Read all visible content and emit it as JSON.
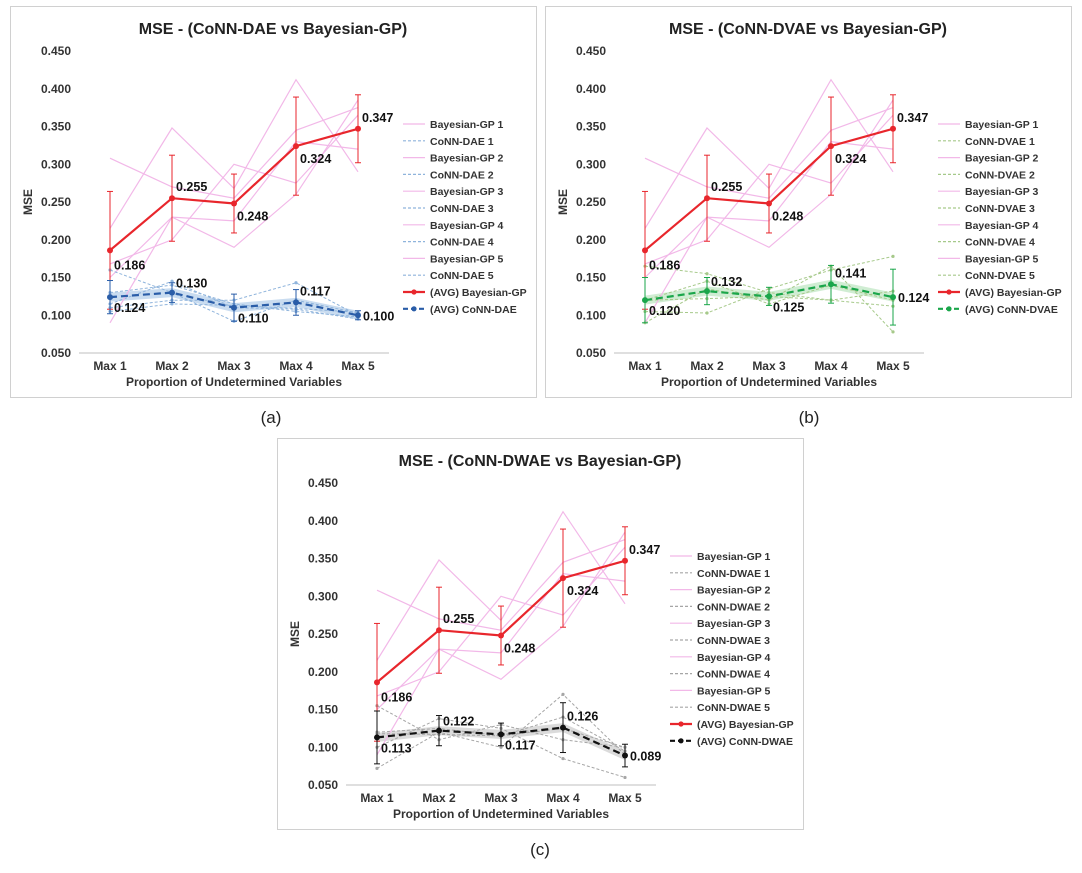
{
  "subcaptions": [
    "(a)",
    "(b)",
    "(c)"
  ],
  "chart_data": [
    {
      "type": "line",
      "title": "MSE - (CoNN-DAE vs Bayesian-GP)",
      "xlabel": "Proportion of Undetermined Variables",
      "ylabel": "MSE",
      "categories": [
        "Max 1",
        "Max 2",
        "Max 3",
        "Max 4",
        "Max 5"
      ],
      "ylim": [
        0.05,
        0.45
      ],
      "yticks": [
        "0.050",
        "0.100",
        "0.150",
        "0.200",
        "0.250",
        "0.300",
        "0.350",
        "0.400",
        "0.450"
      ],
      "legend_position": "right",
      "colors": {
        "bg_runs": "#f2b8e8",
        "nn_runs": "#8fb4dc",
        "bg_avg": "#e8262c",
        "nn_avg": "#2a5da8",
        "nn_band": "#bcd3ec"
      },
      "series": [
        {
          "name": "Bayesian-GP 1",
          "group": "bg",
          "values": [
            0.308,
            0.27,
            0.255,
            0.345,
            0.375
          ]
        },
        {
          "name": "CoNN-DAE 1",
          "group": "nn",
          "values": [
            0.13,
            0.14,
            0.115,
            0.105,
            0.098
          ]
        },
        {
          "name": "Bayesian-GP 2",
          "group": "bg",
          "values": [
            0.215,
            0.348,
            0.268,
            0.412,
            0.29
          ]
        },
        {
          "name": "CoNN-DAE 2",
          "group": "nn",
          "values": [
            0.11,
            0.12,
            0.12,
            0.143,
            0.1
          ]
        },
        {
          "name": "Bayesian-GP 3",
          "group": "bg",
          "values": [
            0.15,
            0.23,
            0.19,
            0.26,
            0.385
          ]
        },
        {
          "name": "CoNN-DAE 3",
          "group": "nn",
          "values": [
            0.16,
            0.13,
            0.092,
            0.12,
            0.103
          ]
        },
        {
          "name": "Bayesian-GP 4",
          "group": "bg",
          "values": [
            0.168,
            0.2,
            0.3,
            0.275,
            0.365
          ]
        },
        {
          "name": "CoNN-DAE 4",
          "group": "nn",
          "values": [
            0.115,
            0.145,
            0.11,
            0.108,
            0.095
          ]
        },
        {
          "name": "Bayesian-GP 5",
          "group": "bg",
          "values": [
            0.09,
            0.23,
            0.225,
            0.33,
            0.32
          ]
        },
        {
          "name": "CoNN-DAE 5",
          "group": "nn",
          "values": [
            0.105,
            0.115,
            0.113,
            0.109,
            0.104
          ]
        },
        {
          "name": "(AVG) Bayesian-GP",
          "group": "bg_avg",
          "values": [
            0.186,
            0.255,
            0.248,
            0.324,
            0.347
          ],
          "errors": [
            0.078,
            0.057,
            0.039,
            0.065,
            0.045
          ]
        },
        {
          "name": "(AVG) CoNN-DAE",
          "group": "nn_avg",
          "values": [
            0.124,
            0.13,
            0.11,
            0.117,
            0.1
          ],
          "errors": [
            0.022,
            0.013,
            0.018,
            0.017,
            0.006
          ]
        }
      ],
      "data_labels": {
        "bg": [
          "0.186",
          "0.255",
          "0.248",
          "0.324",
          "0.347"
        ],
        "nn": [
          "0.124",
          "0.130",
          "0.110",
          "0.117",
          "0.100"
        ]
      }
    },
    {
      "type": "line",
      "title": "MSE - (CoNN-DVAE vs Bayesian-GP)",
      "xlabel": "Proportion of Undetermined Variables",
      "ylabel": "MSE",
      "categories": [
        "Max 1",
        "Max 2",
        "Max 3",
        "Max 4",
        "Max 5"
      ],
      "ylim": [
        0.05,
        0.45
      ],
      "yticks": [
        "0.050",
        "0.100",
        "0.150",
        "0.200",
        "0.250",
        "0.300",
        "0.350",
        "0.400",
        "0.450"
      ],
      "legend_position": "right",
      "colors": {
        "bg_runs": "#f2b8e8",
        "nn_runs": "#a6c98a",
        "bg_avg": "#e8262c",
        "nn_avg": "#1aa64a",
        "nn_band": "#c4e8c8"
      },
      "series": [
        {
          "name": "Bayesian-GP 1",
          "group": "bg",
          "values": [
            0.308,
            0.27,
            0.255,
            0.345,
            0.375
          ]
        },
        {
          "name": "CoNN-DVAE 1",
          "group": "nn",
          "values": [
            0.09,
            0.135,
            0.12,
            0.165,
            0.078
          ]
        },
        {
          "name": "Bayesian-GP 2",
          "group": "bg",
          "values": [
            0.215,
            0.348,
            0.268,
            0.412,
            0.29
          ]
        },
        {
          "name": "CoNN-DVAE 2",
          "group": "nn",
          "values": [
            0.105,
            0.103,
            0.135,
            0.16,
            0.178
          ]
        },
        {
          "name": "Bayesian-GP 3",
          "group": "bg",
          "values": [
            0.15,
            0.23,
            0.19,
            0.26,
            0.385
          ]
        },
        {
          "name": "CoNN-DVAE 3",
          "group": "nn",
          "values": [
            0.165,
            0.155,
            0.13,
            0.12,
            0.112
          ]
        },
        {
          "name": "Bayesian-GP 4",
          "group": "bg",
          "values": [
            0.168,
            0.2,
            0.3,
            0.275,
            0.365
          ]
        },
        {
          "name": "CoNN-DVAE 4",
          "group": "nn",
          "values": [
            0.12,
            0.145,
            0.115,
            0.14,
            0.12
          ]
        },
        {
          "name": "Bayesian-GP 5",
          "group": "bg",
          "values": [
            0.09,
            0.23,
            0.225,
            0.33,
            0.32
          ]
        },
        {
          "name": "CoNN-DVAE 5",
          "group": "nn",
          "values": [
            0.12,
            0.122,
            0.125,
            0.12,
            0.132
          ]
        },
        {
          "name": "(AVG) Bayesian-GP",
          "group": "bg_avg",
          "values": [
            0.186,
            0.255,
            0.248,
            0.324,
            0.347
          ],
          "errors": [
            0.078,
            0.057,
            0.039,
            0.065,
            0.045
          ]
        },
        {
          "name": "(AVG) CoNN-DVAE",
          "group": "nn_avg",
          "values": [
            0.12,
            0.132,
            0.125,
            0.141,
            0.124
          ],
          "errors": [
            0.03,
            0.018,
            0.012,
            0.025,
            0.037
          ]
        }
      ],
      "data_labels": {
        "bg": [
          "0.186",
          "0.255",
          "0.248",
          "0.324",
          "0.347"
        ],
        "nn": [
          "0.120",
          "0.132",
          "0.125",
          "0.141",
          "0.124"
        ]
      }
    },
    {
      "type": "line",
      "title": "MSE - (CoNN-DWAE vs Bayesian-GP)",
      "xlabel": "Proportion of Undetermined Variables",
      "ylabel": "MSE",
      "categories": [
        "Max 1",
        "Max 2",
        "Max 3",
        "Max 4",
        "Max 5"
      ],
      "ylim": [
        0.05,
        0.45
      ],
      "yticks": [
        "0.050",
        "0.100",
        "0.150",
        "0.200",
        "0.250",
        "0.300",
        "0.350",
        "0.400",
        "0.450"
      ],
      "legend_position": "right",
      "colors": {
        "bg_runs": "#f2b8e8",
        "nn_runs": "#a6a6a6",
        "bg_avg": "#e8262c",
        "nn_avg": "#111111",
        "nn_band": "#d2d2d2"
      },
      "series": [
        {
          "name": "Bayesian-GP 1",
          "group": "bg",
          "values": [
            0.308,
            0.27,
            0.255,
            0.345,
            0.375
          ]
        },
        {
          "name": "CoNN-DWAE 1",
          "group": "nn",
          "values": [
            0.072,
            0.12,
            0.1,
            0.17,
            0.09
          ]
        },
        {
          "name": "Bayesian-GP 2",
          "group": "bg",
          "values": [
            0.215,
            0.348,
            0.268,
            0.412,
            0.29
          ]
        },
        {
          "name": "CoNN-DWAE 2",
          "group": "nn",
          "values": [
            0.1,
            0.138,
            0.125,
            0.085,
            0.06
          ]
        },
        {
          "name": "Bayesian-GP 3",
          "group": "bg",
          "values": [
            0.15,
            0.23,
            0.19,
            0.26,
            0.385
          ]
        },
        {
          "name": "CoNN-DWAE 3",
          "group": "nn",
          "values": [
            0.155,
            0.11,
            0.13,
            0.11,
            0.1
          ]
        },
        {
          "name": "Bayesian-GP 4",
          "group": "bg",
          "values": [
            0.168,
            0.2,
            0.3,
            0.275,
            0.365
          ]
        },
        {
          "name": "CoNN-DWAE 4",
          "group": "nn",
          "values": [
            0.12,
            0.125,
            0.115,
            0.14,
            0.095
          ]
        },
        {
          "name": "Bayesian-GP 5",
          "group": "bg",
          "values": [
            0.09,
            0.23,
            0.225,
            0.33,
            0.32
          ]
        },
        {
          "name": "CoNN-DWAE 5",
          "group": "nn",
          "values": [
            0.118,
            0.117,
            0.115,
            0.125,
            0.1
          ]
        },
        {
          "name": "(AVG) Bayesian-GP",
          "group": "bg_avg",
          "values": [
            0.186,
            0.255,
            0.248,
            0.324,
            0.347
          ],
          "errors": [
            0.078,
            0.057,
            0.039,
            0.065,
            0.045
          ]
        },
        {
          "name": "(AVG) CoNN-DWAE",
          "group": "nn_avg",
          "values": [
            0.113,
            0.122,
            0.117,
            0.126,
            0.089
          ],
          "errors": [
            0.035,
            0.02,
            0.015,
            0.033,
            0.015
          ]
        }
      ],
      "data_labels": {
        "bg": [
          "0.186",
          "0.255",
          "0.248",
          "0.324",
          "0.347"
        ],
        "nn": [
          "0.113",
          "0.122",
          "0.117",
          "0.126",
          "0.089"
        ]
      }
    }
  ]
}
